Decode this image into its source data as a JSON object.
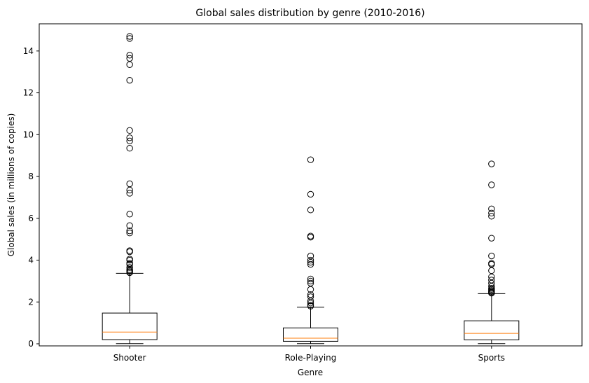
{
  "chart_data": {
    "type": "boxplot",
    "title": "Global sales distribution by genre (2010-2016)",
    "xlabel": "Genre",
    "ylabel": "Global sales (in millions of copies)",
    "ylim": [
      -0.1,
      15.3
    ],
    "yticks": [
      0,
      2,
      4,
      6,
      8,
      10,
      12,
      14
    ],
    "grid": false,
    "colors": {
      "box": "#000000",
      "median": "#ff7f0e",
      "flier": "#000000"
    },
    "categories": [
      "Shooter",
      "Role-Playing",
      "Sports"
    ],
    "boxes": [
      {
        "category": "Shooter",
        "whisker_low": 0.01,
        "q1": 0.2,
        "median": 0.56,
        "q3": 1.47,
        "whisker_high": 3.37,
        "fliers": [
          3.4,
          3.45,
          3.5,
          3.55,
          3.65,
          3.8,
          3.85,
          4.0,
          4.05,
          4.4,
          4.45,
          5.3,
          5.4,
          5.65,
          6.2,
          7.2,
          7.35,
          7.65,
          9.35,
          9.7,
          9.85,
          10.2,
          12.6,
          13.35,
          13.65,
          13.8,
          14.6,
          14.7
        ]
      },
      {
        "category": "Role-Playing",
        "whisker_low": 0.01,
        "q1": 0.12,
        "median": 0.27,
        "q3": 0.76,
        "whisker_high": 1.75,
        "fliers": [
          1.8,
          1.85,
          1.95,
          2.05,
          2.25,
          2.35,
          2.6,
          2.9,
          3.0,
          3.1,
          3.8,
          3.9,
          4.0,
          4.2,
          5.1,
          5.15,
          6.4,
          7.15,
          8.8
        ]
      },
      {
        "category": "Sports",
        "whisker_low": 0.01,
        "q1": 0.19,
        "median": 0.5,
        "q3": 1.1,
        "whisker_high": 2.4,
        "fliers": [
          2.42,
          2.46,
          2.5,
          2.55,
          2.6,
          2.65,
          2.75,
          2.9,
          3.05,
          3.2,
          3.5,
          3.8,
          3.85,
          4.2,
          5.05,
          6.1,
          6.25,
          6.45,
          7.6,
          8.6
        ]
      }
    ]
  }
}
